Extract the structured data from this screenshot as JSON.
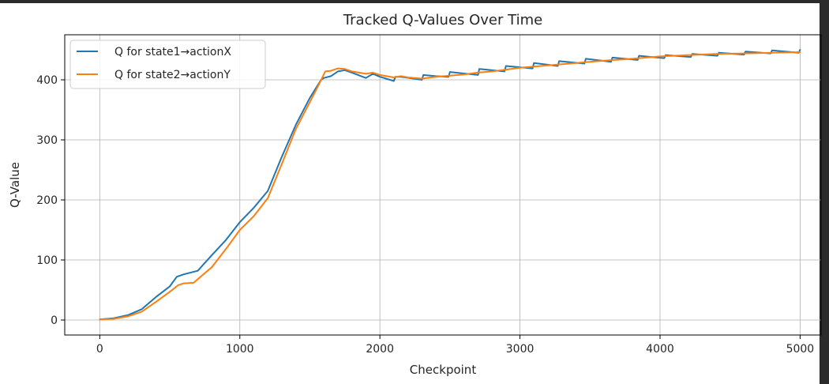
{
  "chart_data": {
    "type": "line",
    "title": "Tracked Q-Values Over Time",
    "xlabel": "Checkpoint",
    "ylabel": "Q-Value",
    "xlim": [
      -250,
      5150
    ],
    "ylim": [
      -25,
      475
    ],
    "xticks": [
      0,
      1000,
      2000,
      3000,
      4000,
      5000
    ],
    "yticks": [
      0,
      100,
      200,
      300,
      400
    ],
    "grid": true,
    "legend_position": "top-left",
    "series": [
      {
        "name": "Q for state1→actionX",
        "color": "#1f77b4",
        "x": [
          0,
          100,
          200,
          300,
          400,
          500,
          550,
          600,
          700,
          800,
          900,
          1000,
          1100,
          1200,
          1300,
          1400,
          1500,
          1580,
          1600,
          1650,
          1700,
          1750,
          1800,
          1900,
          1950,
          2000,
          2100,
          2110,
          2150,
          2300,
          2310,
          2400,
          2490,
          2500,
          2700,
          2710,
          2890,
          2900,
          3090,
          3100,
          3270,
          3280,
          3460,
          3470,
          3650,
          3660,
          3840,
          3850,
          4030,
          4040,
          4220,
          4230,
          4410,
          4420,
          4600,
          4610,
          4790,
          4800,
          4990,
          5000
        ],
        "y": [
          1,
          3,
          8,
          18,
          38,
          56,
          72,
          76,
          82,
          108,
          133,
          163,
          187,
          215,
          272,
          325,
          370,
          400,
          403,
          406,
          414,
          416,
          412,
          403,
          410,
          405,
          398,
          405,
          405,
          400,
          408,
          406,
          405,
          413,
          408,
          418,
          414,
          423,
          419,
          428,
          423,
          431,
          427,
          435,
          430,
          437,
          433,
          440,
          436,
          441,
          438,
          443,
          440,
          445,
          442,
          447,
          444,
          449,
          445,
          450
        ]
      },
      {
        "name": "Q for state2→actionY",
        "color": "#ff7f0e",
        "x": [
          0,
          100,
          200,
          300,
          400,
          500,
          560,
          600,
          670,
          800,
          900,
          1000,
          1100,
          1200,
          1300,
          1400,
          1500,
          1560,
          1610,
          1650,
          1700,
          1750,
          1800,
          1900,
          1950,
          2000,
          2100,
          2150,
          2200,
          2300,
          2400,
          2500,
          2600,
          2700,
          2800,
          2900,
          3000,
          3200,
          3400,
          3600,
          3800,
          4000,
          4200,
          4400,
          4600,
          4800,
          5000
        ],
        "y": [
          1,
          2,
          6,
          14,
          30,
          47,
          58,
          61,
          62,
          88,
          118,
          150,
          173,
          203,
          260,
          318,
          363,
          390,
          414,
          415,
          419,
          418,
          414,
          410,
          412,
          408,
          404,
          406,
          404,
          402,
          405,
          407,
          409,
          412,
          414,
          417,
          420,
          424,
          428,
          432,
          435,
          439,
          441,
          443,
          444,
          445,
          446
        ]
      }
    ]
  }
}
